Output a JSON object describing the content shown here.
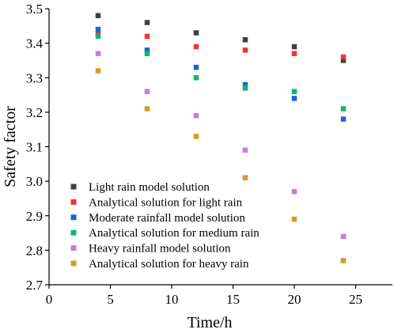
{
  "chart_data": {
    "type": "scatter",
    "title": "",
    "xlabel": "Time/h",
    "ylabel": "Safety factor",
    "xlim": [
      0,
      28
    ],
    "ylim": [
      2.7,
      3.5
    ],
    "x_ticks": [
      0,
      5,
      10,
      15,
      20,
      25
    ],
    "y_ticks": [
      2.7,
      2.8,
      2.9,
      3.0,
      3.1,
      3.2,
      3.3,
      3.4,
      3.5
    ],
    "x_tick_labels": [
      "0",
      "5",
      "10",
      "15",
      "20",
      "25"
    ],
    "y_tick_labels": [
      "2.7",
      "2.8",
      "2.9",
      "3.0",
      "3.1",
      "3.2",
      "3.3",
      "3.4",
      "3.5"
    ],
    "grid": false,
    "legend_position": "lower-left",
    "x": [
      4,
      8,
      12,
      16,
      20,
      24
    ],
    "series": [
      {
        "name": "Light rain model solution",
        "color": "#404040",
        "values": [
          3.48,
          3.46,
          3.43,
          3.41,
          3.39,
          3.35
        ]
      },
      {
        "name": "Analytical solution for light rain",
        "color": "#f5322f",
        "values": [
          3.43,
          3.42,
          3.39,
          3.38,
          3.37,
          3.36
        ]
      },
      {
        "name": "Moderate rainfall model solution",
        "color": "#1466d6",
        "values": [
          3.44,
          3.38,
          3.33,
          3.28,
          3.24,
          3.18
        ]
      },
      {
        "name": "Analytical solution for medium rain",
        "color": "#16b36a",
        "values": [
          3.42,
          3.37,
          3.3,
          3.27,
          3.26,
          3.21
        ]
      },
      {
        "name": "Heavy rainfall model solution",
        "color": "#c57be0",
        "values": [
          3.37,
          3.26,
          3.19,
          3.09,
          2.97,
          2.84
        ]
      },
      {
        "name": "Analytical solution for heavy rain",
        "color": "#d89a1e",
        "values": [
          3.32,
          3.21,
          3.13,
          3.01,
          2.89,
          2.77
        ]
      }
    ]
  }
}
